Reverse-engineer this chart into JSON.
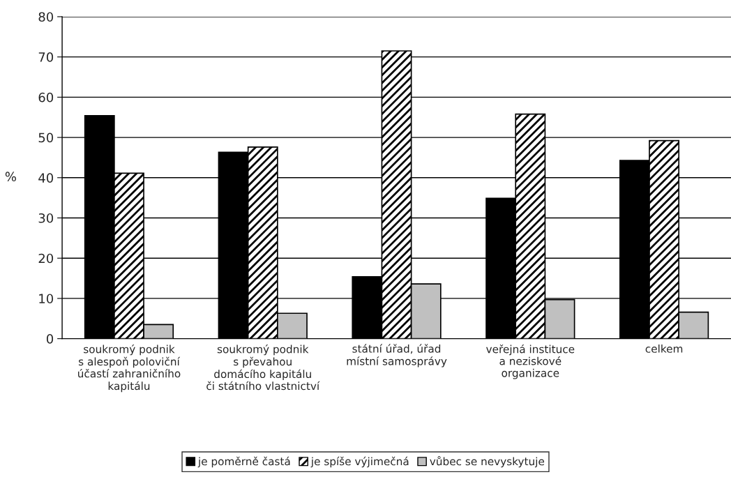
{
  "chart_data": {
    "type": "bar",
    "ylabel": "%",
    "categories": [
      "soukromý podnik\ns alespoň poloviční\núčastí zahraničního\nkapitálu",
      "soukromý podnik\ns převahou\ndomácího kapitálu\nči státního vlastnictví",
      "státní úřad, úřad\nmístní samosprávy",
      "veřejná instituce\na neziskové\norganizace",
      "celkem"
    ],
    "series": [
      {
        "name": "je poměrně častá",
        "color": "#000000",
        "values": [
          55.4,
          46.3,
          15.4,
          34.9,
          44.3
        ]
      },
      {
        "name": "je spíše výjimečná",
        "color": "#000000",
        "values": [
          41.1,
          47.6,
          71.5,
          55.8,
          49.2
        ]
      },
      {
        "name": "vůbec se nevyskytuje",
        "color": "#c0c0c0",
        "values": [
          3.5,
          6.3,
          13.6,
          9.7,
          6.6
        ]
      }
    ],
    "ylim": [
      0,
      80
    ],
    "yticks": [
      0,
      10,
      20,
      30,
      40,
      50,
      60,
      70,
      80
    ],
    "grid": "y",
    "legend": "bottom"
  }
}
